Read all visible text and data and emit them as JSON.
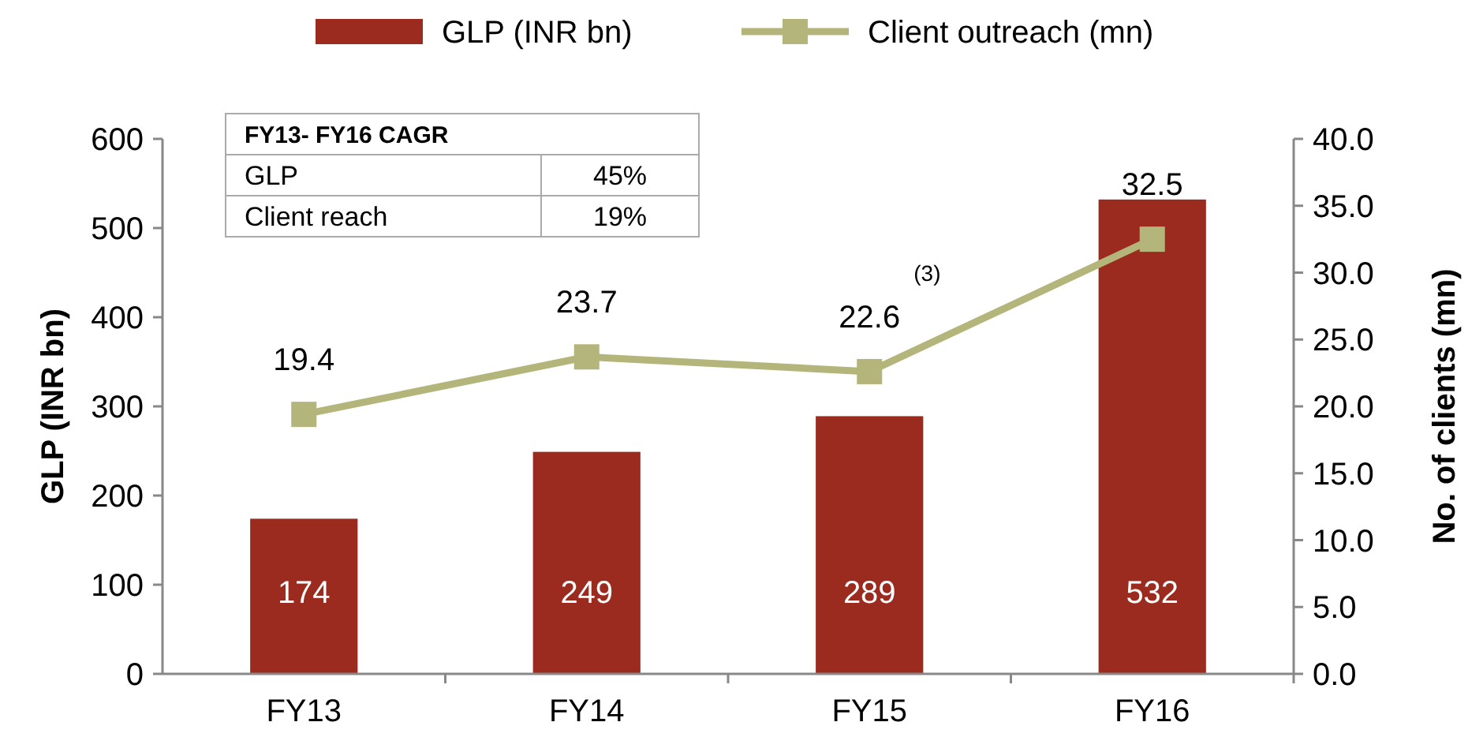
{
  "chart_data": {
    "type": "bar",
    "ylabel": "GLP (INR bn)",
    "y2label": "No. of clients (mn)",
    "categories": [
      "FY13",
      "FY14",
      "FY15",
      "FY16"
    ],
    "series": [
      {
        "name": "GLP (INR bn)",
        "color": "#9c2b1f",
        "values": [
          174,
          249,
          289,
          532
        ]
      },
      {
        "name": "Client outreach (mn)",
        "type": "line",
        "axis": "y2",
        "color": "#b3b57a",
        "values": [
          19.4,
          23.7,
          22.6,
          32.5
        ]
      }
    ],
    "ylim": [
      0,
      600
    ],
    "yticks": [
      0,
      100,
      200,
      300,
      400,
      500,
      600
    ],
    "y2lim": [
      0,
      40
    ],
    "y2ticks": [
      {
        "value": 0,
        "label": "0.0"
      },
      {
        "value": 5,
        "label": "5.0"
      },
      {
        "value": 10,
        "label": "10.0"
      },
      {
        "value": 15,
        "label": "15.0"
      },
      {
        "value": 20,
        "label": "20.0"
      },
      {
        "value": 25,
        "label": "25.0"
      },
      {
        "value": 30,
        "label": "30.0"
      },
      {
        "value": 35,
        "label": "35.0"
      },
      {
        "value": 40,
        "label": "40.0"
      }
    ],
    "data_labels": true,
    "legend": "top",
    "grid": false,
    "marker": "square",
    "line_style": "solid",
    "annotations": [
      "FY13- FY16 CAGR",
      "GLP",
      "45%",
      "Client reach",
      "19%",
      "(3)"
    ]
  }
}
